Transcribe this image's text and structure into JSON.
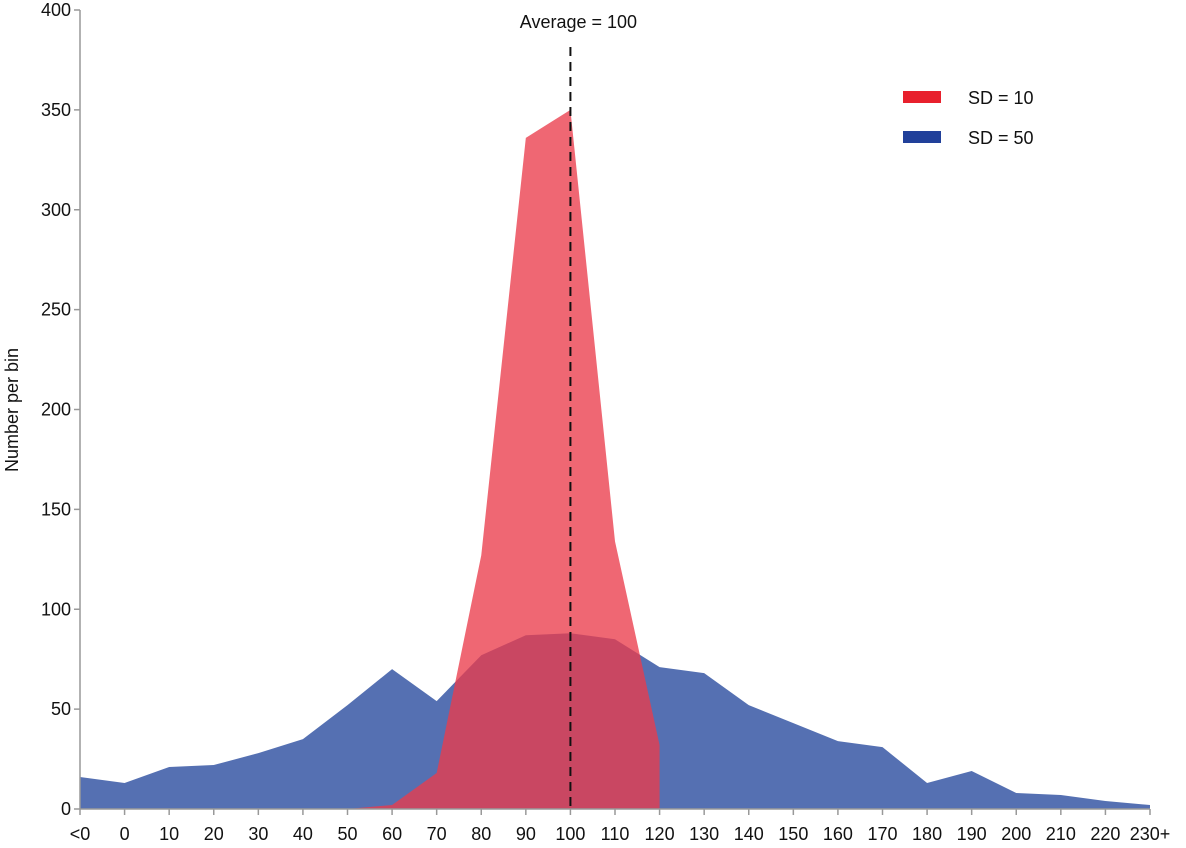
{
  "chart_data": {
    "type": "area",
    "title": "",
    "xlabel": "",
    "ylabel": "Number per bin",
    "ylim": [
      0,
      400
    ],
    "yticks": [
      0,
      50,
      100,
      150,
      200,
      250,
      300,
      350,
      400
    ],
    "categories": [
      "<0",
      "0",
      "10",
      "20",
      "30",
      "40",
      "50",
      "60",
      "70",
      "80",
      "90",
      "100",
      "110",
      "120",
      "130",
      "140",
      "150",
      "160",
      "170",
      "180",
      "190",
      "200",
      "210",
      "220",
      "230+"
    ],
    "series": [
      {
        "name": "SD = 50",
        "color": "#5570b2",
        "values": [
          16,
          13,
          21,
          22,
          28,
          35,
          52,
          70,
          54,
          77,
          87,
          88,
          85,
          71,
          68,
          52,
          43,
          34,
          31,
          13,
          19,
          8,
          7,
          4,
          2
        ]
      },
      {
        "name": "SD = 10",
        "color": "#ea3c4b",
        "values": [
          null,
          null,
          null,
          null,
          null,
          null,
          0,
          2,
          18,
          127,
          336,
          350,
          134,
          32,
          null,
          null,
          null,
          null,
          null,
          null,
          null,
          null,
          null,
          null,
          null
        ]
      }
    ],
    "annotation": {
      "label": "Average = 100",
      "category": "100"
    },
    "legend": "top-right",
    "grid": false
  }
}
